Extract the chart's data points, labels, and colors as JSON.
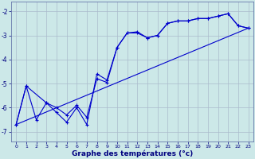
{
  "title": "Graphe des températures (°c)",
  "bg_color": "#cce8e8",
  "grid_color": "#aabbcc",
  "line_color": "#0000cc",
  "xlim_min": -0.5,
  "xlim_max": 23.5,
  "ylim_min": -7.4,
  "ylim_max": -1.6,
  "yticks": [
    -7,
    -6,
    -5,
    -4,
    -3,
    -2
  ],
  "xticks": [
    0,
    1,
    2,
    3,
    4,
    5,
    6,
    7,
    8,
    9,
    10,
    11,
    12,
    13,
    14,
    15,
    16,
    17,
    18,
    19,
    20,
    21,
    22,
    23
  ],
  "hours": [
    0,
    1,
    2,
    3,
    4,
    5,
    6,
    7,
    8,
    9,
    10,
    11,
    12,
    13,
    14,
    15,
    16,
    17,
    18,
    19,
    20,
    21,
    22,
    23
  ],
  "temp_main": [
    -6.7,
    -5.1,
    -6.5,
    -5.8,
    -6.2,
    -6.6,
    -6.0,
    -6.7,
    -4.6,
    -4.85,
    -3.5,
    -2.9,
    -2.9,
    -3.1,
    -3.0,
    -2.5,
    -2.4,
    -2.4,
    -2.3,
    -2.3,
    -2.2,
    -2.1,
    -2.6,
    -2.7
  ],
  "trend_x": [
    0,
    23
  ],
  "trend_y": [
    -6.7,
    -2.7
  ],
  "smooth_x": [
    0,
    1,
    3,
    4,
    5,
    6,
    7,
    8,
    9,
    10,
    11,
    12,
    13,
    14,
    15,
    16,
    17,
    18,
    19,
    20,
    21,
    22,
    23
  ],
  "smooth_y": [
    -6.7,
    -5.1,
    -5.8,
    -6.0,
    -6.3,
    -5.9,
    -6.4,
    -4.8,
    -4.95,
    -3.5,
    -2.9,
    -2.85,
    -3.1,
    -3.0,
    -2.5,
    -2.4,
    -2.4,
    -2.3,
    -2.3,
    -2.2,
    -2.1,
    -2.6,
    -2.7
  ]
}
